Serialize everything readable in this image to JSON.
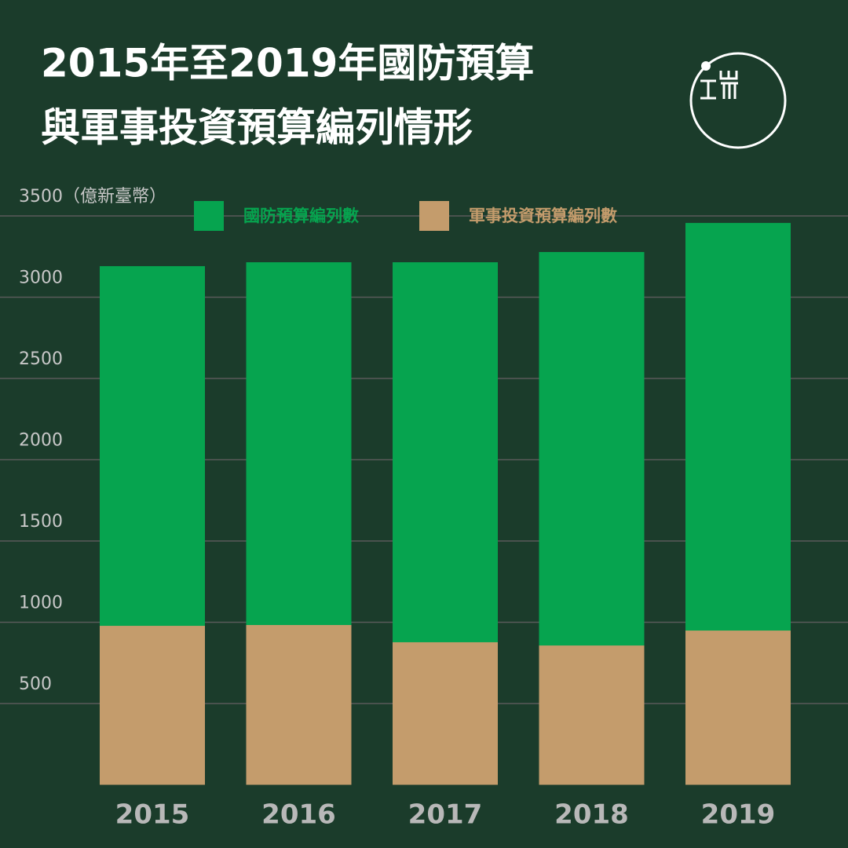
{
  "chart_data": {
    "type": "bar",
    "overlap": true,
    "title": [
      "2015年至2019年國防預算",
      "與軍事投資預算編列情形"
    ],
    "categories": [
      "2015",
      "2016",
      "2017",
      "2018",
      "2019"
    ],
    "series": [
      {
        "name": "國防預算編列數",
        "color": "#06a44f",
        "values": [
          3191,
          3215,
          3215,
          3278,
          3457
        ]
      },
      {
        "name": "軍事投資預算編列數",
        "color": "#c49c6c",
        "values": [
          978,
          983,
          877,
          857,
          949
        ]
      }
    ],
    "ylim": [
      0,
      3500
    ],
    "yticks": [
      500,
      1000,
      1500,
      2000,
      2500,
      3000,
      {
        "value": 3500,
        "label": "3500（億新臺幣）"
      }
    ],
    "grid": true
  }
}
